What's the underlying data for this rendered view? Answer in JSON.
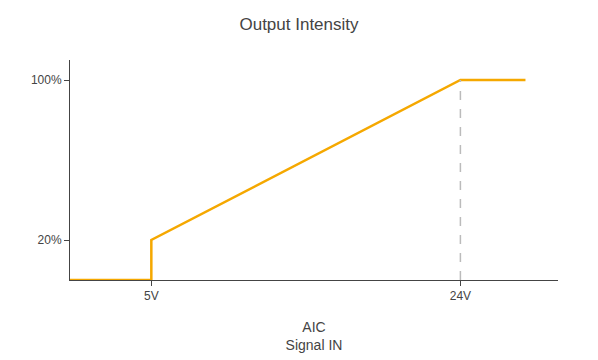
{
  "chart_data": {
    "type": "line",
    "title": "Output Intensity",
    "xlabel": "AIC\nSignal IN",
    "x": [
      0,
      5,
      5,
      24,
      28
    ],
    "series": [
      {
        "color": "#F5A800",
        "values": [
          0,
          0,
          20,
          100,
          100
        ],
        "line_style": "solid"
      },
      {
        "color": "#BBBBBB",
        "x": [
          24,
          24
        ],
        "values": [
          0,
          100
        ],
        "line_style": "dashed"
      }
    ],
    "xlim": [
      0,
      30
    ],
    "ylim": [
      0,
      110
    ],
    "xticks": [
      {
        "value": 5,
        "label": "5V"
      },
      {
        "value": 24,
        "label": "24V"
      }
    ],
    "yticks": [
      {
        "value": 20,
        "label": "20%"
      },
      {
        "value": 100,
        "label": "100%"
      }
    ],
    "grid": false
  }
}
